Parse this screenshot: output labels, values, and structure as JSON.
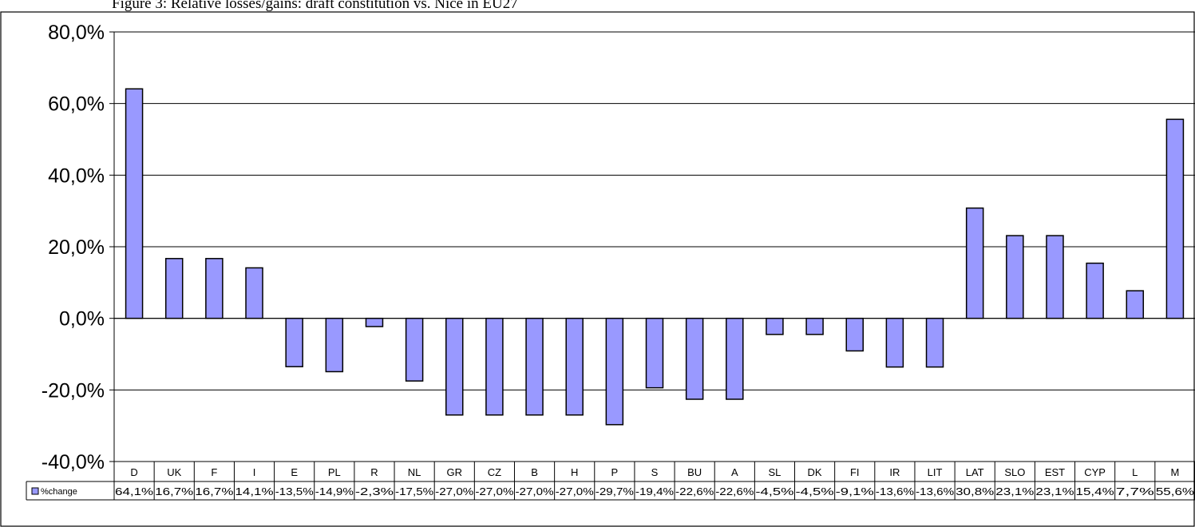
{
  "caption": "Figure 3: Relative losses/gains: draft constitution vs. Nice in EU27",
  "chart_data": {
    "type": "bar",
    "categories": [
      "D",
      "UK",
      "F",
      "I",
      "E",
      "PL",
      "R",
      "NL",
      "GR",
      "CZ",
      "B",
      "H",
      "P",
      "S",
      "BU",
      "A",
      "SL",
      "DK",
      "FI",
      "IR",
      "LIT",
      "LAT",
      "SLO",
      "EST",
      "CYP",
      "L",
      "M"
    ],
    "series": [
      {
        "name": "%change",
        "values": [
          64.1,
          16.7,
          16.7,
          14.1,
          -13.5,
          -14.9,
          -2.3,
          -17.5,
          -27.0,
          -27.0,
          -27.0,
          -27.0,
          -29.7,
          -19.4,
          -22.6,
          -22.6,
          -4.5,
          -4.5,
          -9.1,
          -13.6,
          -13.6,
          30.8,
          23.1,
          23.1,
          15.4,
          7.7,
          55.6
        ],
        "labels": [
          "64,1%",
          "16,7%",
          "16,7%",
          "14,1%",
          "-13,5%",
          "-14,9%",
          "-2,3%",
          "-17,5%",
          "-27,0%",
          "-27,0%",
          "-27,0%",
          "-27,0%",
          "-29,7%",
          "-19,4%",
          "-22,6%",
          "-22,6%",
          "-4,5%",
          "-4,5%",
          "-9,1%",
          "-13,6%",
          "-13,6%",
          "30,8%",
          "23,1%",
          "23,1%",
          "15,4%",
          "7,7%",
          "55,6%"
        ],
        "color": "#9999ff"
      }
    ],
    "ylim": [
      -40,
      80
    ],
    "yticks": [
      80,
      60,
      40,
      20,
      0,
      -20,
      -40
    ],
    "ytick_labels": [
      "80,0%",
      "60,0%",
      "40,0%",
      "20,0%",
      "0,0%",
      "-20,0%",
      "-40,0%"
    ],
    "grid": true,
    "legend": "data-table-left",
    "plot_background": "#ffffff",
    "border_color": "#000000"
  }
}
